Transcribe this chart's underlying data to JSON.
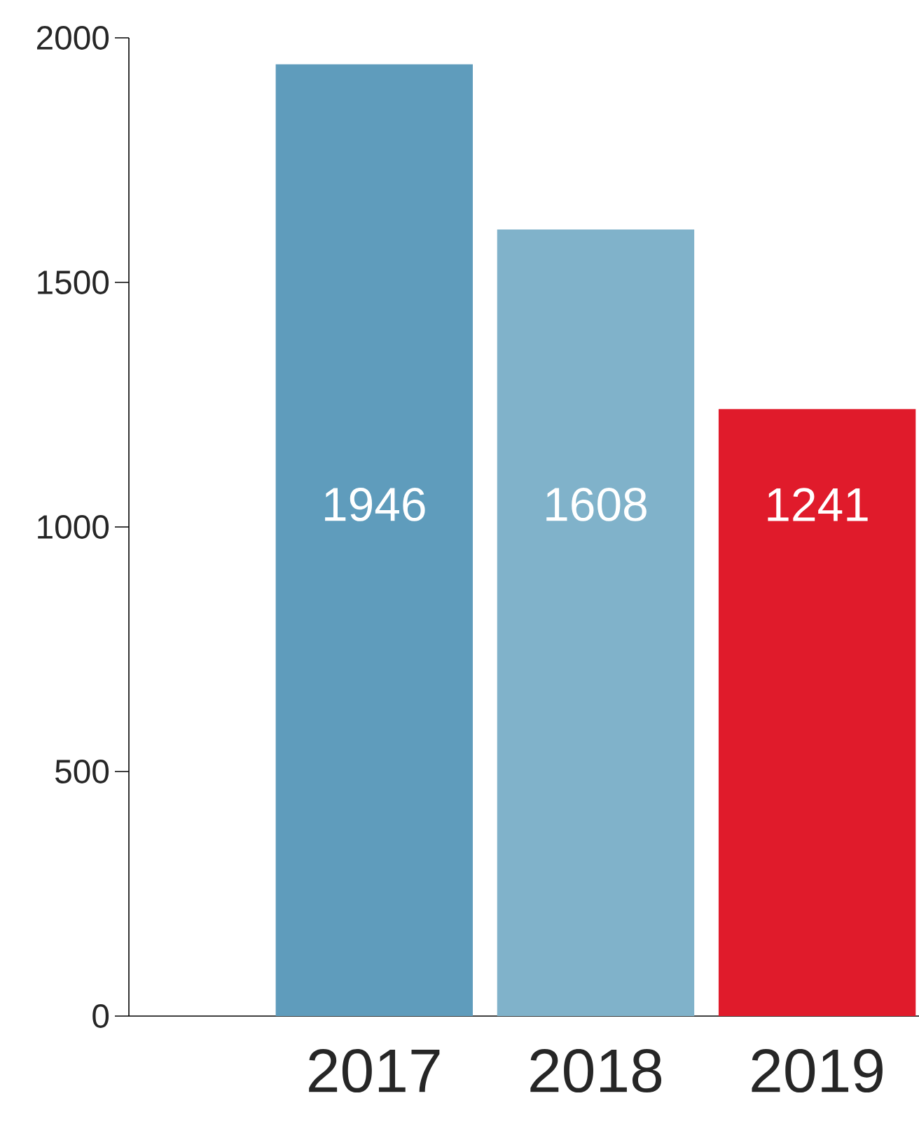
{
  "chart_data": {
    "type": "bar",
    "categories": [
      "2017",
      "2018",
      "2019"
    ],
    "values": [
      1946,
      1608,
      1241
    ],
    "colors": [
      "#5f9cbc",
      "#80b2ca",
      "#e01b2b"
    ],
    "ylim": [
      0,
      2000
    ],
    "yticks": [
      0,
      500,
      1000,
      1500,
      2000
    ],
    "data_labels": true
  }
}
